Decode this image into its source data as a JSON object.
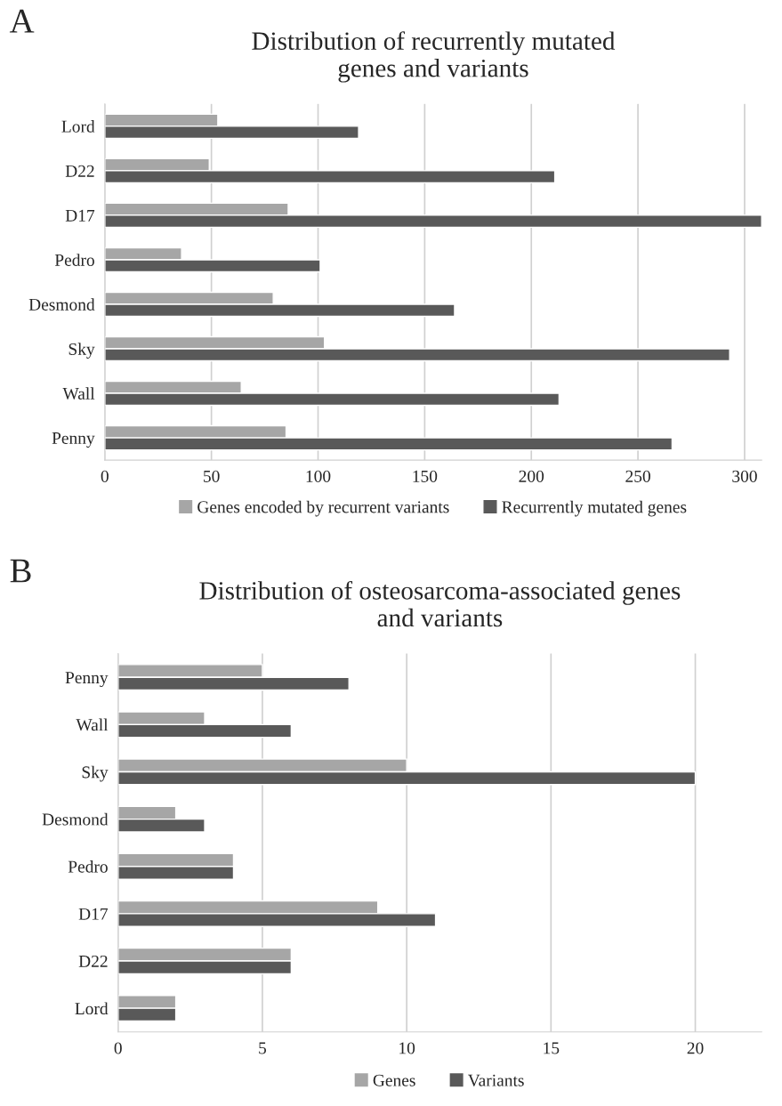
{
  "chart_data": [
    {
      "type": "bar",
      "orientation": "horizontal",
      "title": "Distribution of recurrently mutated\ngenes and variants",
      "annotations": [
        "A"
      ],
      "categories": [
        "Lord",
        "D22",
        "D17",
        "Pedro",
        "Desmond",
        "Sky",
        "Wall",
        "Penny"
      ],
      "series": [
        {
          "name": "Genes encoded by recurrent variants",
          "color": "#a6a6a6",
          "values": [
            53,
            49,
            86,
            36,
            79,
            103,
            64,
            85
          ]
        },
        {
          "name": "Recurrently mutated genes",
          "color": "#595959",
          "values": [
            119,
            211,
            308,
            101,
            164,
            293,
            213,
            266
          ]
        }
      ],
      "xlim": [
        0,
        308
      ],
      "xticks": [
        0,
        50,
        100,
        150,
        200,
        250,
        300
      ],
      "grid": "x",
      "legend": "bottom"
    },
    {
      "type": "bar",
      "orientation": "horizontal",
      "title": "Distribution of osteosarcoma-associated genes\nand variants",
      "annotations": [
        "B"
      ],
      "categories": [
        "Penny",
        "Wall",
        "Sky",
        "Desmond",
        "Pedro",
        "D17",
        "D22",
        "Lord"
      ],
      "series": [
        {
          "name": "Genes",
          "color": "#a6a6a6",
          "values": [
            5,
            3,
            10,
            2,
            4,
            9,
            6,
            2
          ]
        },
        {
          "name": "Variants",
          "color": "#595959",
          "values": [
            8,
            6,
            20,
            3,
            4,
            11,
            6,
            2
          ]
        }
      ],
      "xlim": [
        0,
        22.3
      ],
      "xticks": [
        0,
        5,
        10,
        15,
        20
      ],
      "grid": "x",
      "legend": "bottom"
    }
  ]
}
